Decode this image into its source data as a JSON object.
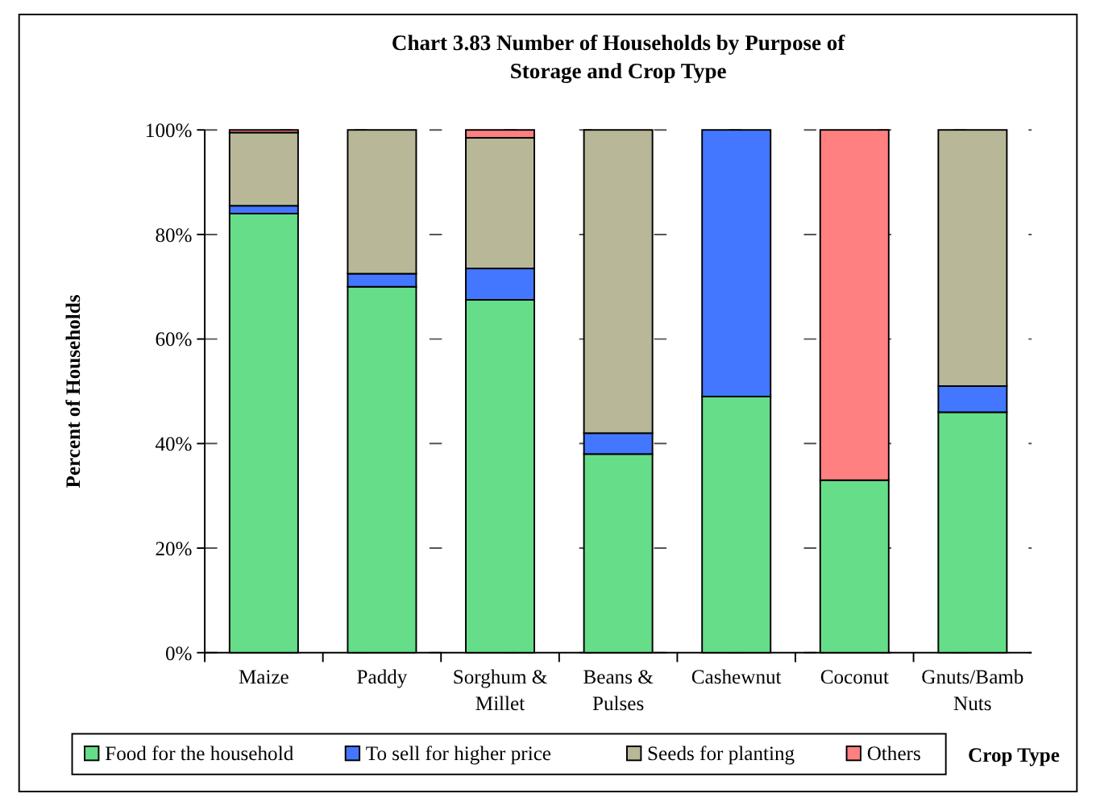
{
  "chart_data": {
    "type": "bar",
    "title": "Chart 3.83  Number of Households by Purpose of Storage and Crop Type",
    "xlabel": "Crop Type",
    "ylabel": "Percent of Households",
    "categories": [
      "Maize",
      "Paddy",
      "Sorghum & Millet",
      "Beans & Pulses",
      "Cashewnut",
      "Coconut",
      "Gnuts/Bamb Nuts"
    ],
    "stacked": true,
    "series": [
      {
        "name": "Food for the household",
        "color": "#66dd88",
        "values": [
          84,
          70,
          67.5,
          38,
          49,
          33,
          46
        ]
      },
      {
        "name": "To sell for higher price",
        "color": "#4477ff",
        "values": [
          1.5,
          2.5,
          6,
          4,
          51,
          0,
          5
        ]
      },
      {
        "name": "Seeds for planting",
        "color": "#b8b898",
        "values": [
          14,
          27.5,
          25,
          58,
          0,
          0,
          49
        ]
      },
      {
        "name": "Others",
        "color": "#ff8080",
        "values": [
          0.5,
          0,
          1.5,
          0,
          0,
          67,
          0
        ]
      }
    ],
    "ylim": [
      0,
      100
    ],
    "yticks": [
      {
        "value": 0,
        "label": "0%"
      },
      {
        "value": 20,
        "label": "20%"
      },
      {
        "value": 40,
        "label": "40%"
      },
      {
        "value": 60,
        "label": "60%"
      },
      {
        "value": 80,
        "label": "80%"
      },
      {
        "value": 100,
        "label": "100%"
      }
    ],
    "grid": "y",
    "legend": "bottom"
  }
}
